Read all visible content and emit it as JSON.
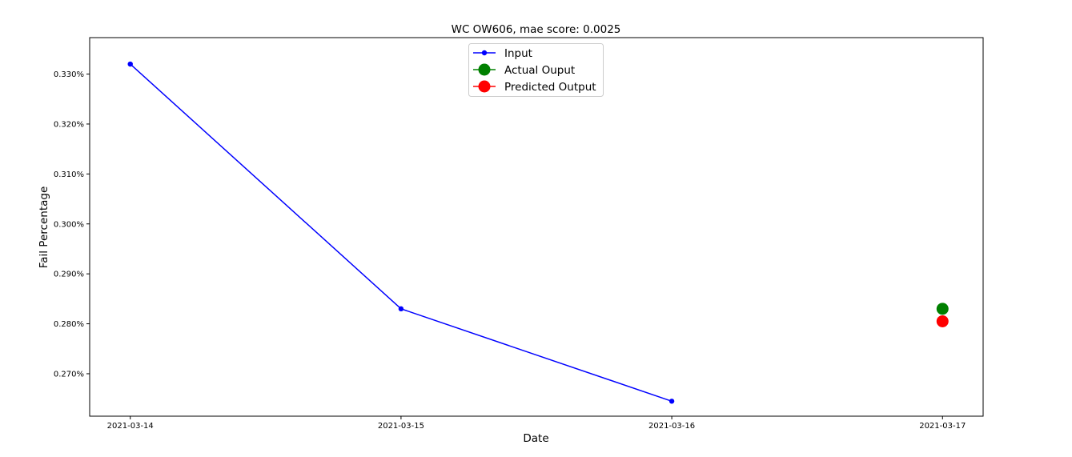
{
  "chart_data": {
    "type": "line",
    "title": "WC OW606, mae score: 0.0025",
    "xlabel": "Date",
    "ylabel": "Fail Percentage",
    "x_ticks": [
      "2021-03-14",
      "2021-03-15",
      "2021-03-16",
      "2021-03-17"
    ],
    "y_ticks": [
      "0.270%",
      "0.280%",
      "0.290%",
      "0.300%",
      "0.310%",
      "0.320%",
      "0.330%"
    ],
    "y_tick_values": [
      0.27,
      0.28,
      0.29,
      0.3,
      0.31,
      0.32,
      0.33
    ],
    "ylim": [
      0.2615,
      0.3373
    ],
    "xlim": [
      "2021-03-13 20:24",
      "2021-03-17 03:36"
    ],
    "grid": false,
    "legend_position": "top-center",
    "series": [
      {
        "name": "Input",
        "color": "#0000ff",
        "marker": "small-circle",
        "line": true,
        "points": [
          {
            "x": "2021-03-14",
            "y": 0.332
          },
          {
            "x": "2021-03-15",
            "y": 0.283
          },
          {
            "x": "2021-03-16",
            "y": 0.2645
          }
        ]
      },
      {
        "name": "Actual Ouput",
        "color": "#008000",
        "marker": "large-circle",
        "line": false,
        "points": [
          {
            "x": "2021-03-17",
            "y": 0.283
          }
        ]
      },
      {
        "name": "Predicted Output",
        "color": "#ff0000",
        "marker": "large-circle",
        "line": false,
        "points": [
          {
            "x": "2021-03-17",
            "y": 0.2805
          }
        ]
      }
    ]
  }
}
